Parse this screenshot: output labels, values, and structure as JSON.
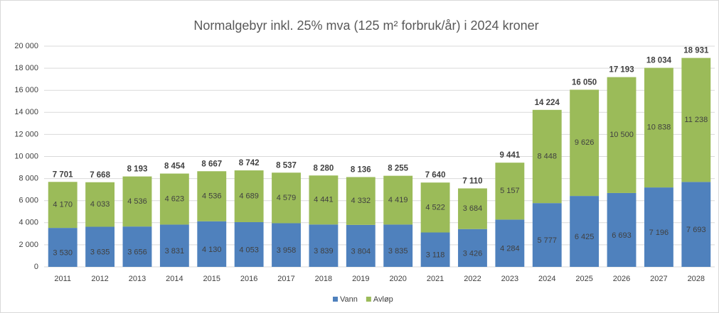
{
  "chart_data": {
    "type": "stacked_bar",
    "title": "Normalgebyr inkl. 25% mva (125 m² forbruk/år) i 2024 kroner",
    "categories": [
      "2011",
      "2012",
      "2013",
      "2014",
      "2015",
      "2016",
      "2017",
      "2018",
      "2019",
      "2020",
      "2021",
      "2022",
      "2023",
      "2024",
      "2025",
      "2026",
      "2027",
      "2028"
    ],
    "series": [
      {
        "name": "Vann",
        "color": "#4f81bd",
        "values": [
          3530,
          3635,
          3656,
          3831,
          4130,
          4053,
          3958,
          3839,
          3804,
          3835,
          3118,
          3426,
          4284,
          5777,
          6425,
          6693,
          7196,
          7693
        ],
        "value_labels": [
          "3 530",
          "3 635",
          "3 656",
          "3 831",
          "4 130",
          "4 053",
          "3 958",
          "3 839",
          "3 804",
          "3 835",
          "3 118",
          "3 426",
          "4 284",
          "5 777",
          "6 425",
          "6 693",
          "7 196",
          "7 693"
        ]
      },
      {
        "name": "Avløp",
        "color": "#9bbb59",
        "values": [
          4170,
          4033,
          4536,
          4623,
          4536,
          4689,
          4579,
          4441,
          4332,
          4419,
          4522,
          3684,
          5157,
          8448,
          9626,
          10500,
          10838,
          11238
        ],
        "value_labels": [
          "4 170",
          "4 033",
          "4 536",
          "4 623",
          "4 536",
          "4 689",
          "4 579",
          "4 441",
          "4 332",
          "4 419",
          "4 522",
          "3 684",
          "5 157",
          "8 448",
          "9 626",
          "10 500",
          "10 838",
          "11 238"
        ]
      }
    ],
    "totals": [
      7701,
      7668,
      8193,
      8454,
      8667,
      8742,
      8537,
      8280,
      8136,
      8255,
      7640,
      7110,
      9441,
      14224,
      16050,
      17193,
      18034,
      18931
    ],
    "total_labels": [
      "7 701",
      "7 668",
      "8 193",
      "8 454",
      "8 667",
      "8 742",
      "8 537",
      "8 280",
      "8 136",
      "8 255",
      "7 640",
      "7 110",
      "9 441",
      "14 224",
      "16 050",
      "17 193",
      "18 034",
      "18 931"
    ],
    "ylim": [
      0,
      20000
    ],
    "yticks": [
      0,
      {
        "value": 2000,
        "label": "2 000"
      },
      {
        "value": 4000,
        "label": "4 000"
      },
      {
        "value": 6000,
        "label": "6 000"
      },
      {
        "value": 8000,
        "label": "8 000"
      },
      {
        "value": 10000,
        "label": "10 000"
      },
      {
        "value": 12000,
        "label": "12 000"
      },
      {
        "value": 14000,
        "label": "14 000"
      },
      {
        "value": 16000,
        "label": "16 000"
      },
      {
        "value": 18000,
        "label": "18 000"
      },
      {
        "value": 20000,
        "label": "20 000"
      }
    ],
    "grid": true,
    "legend": "bottom"
  }
}
